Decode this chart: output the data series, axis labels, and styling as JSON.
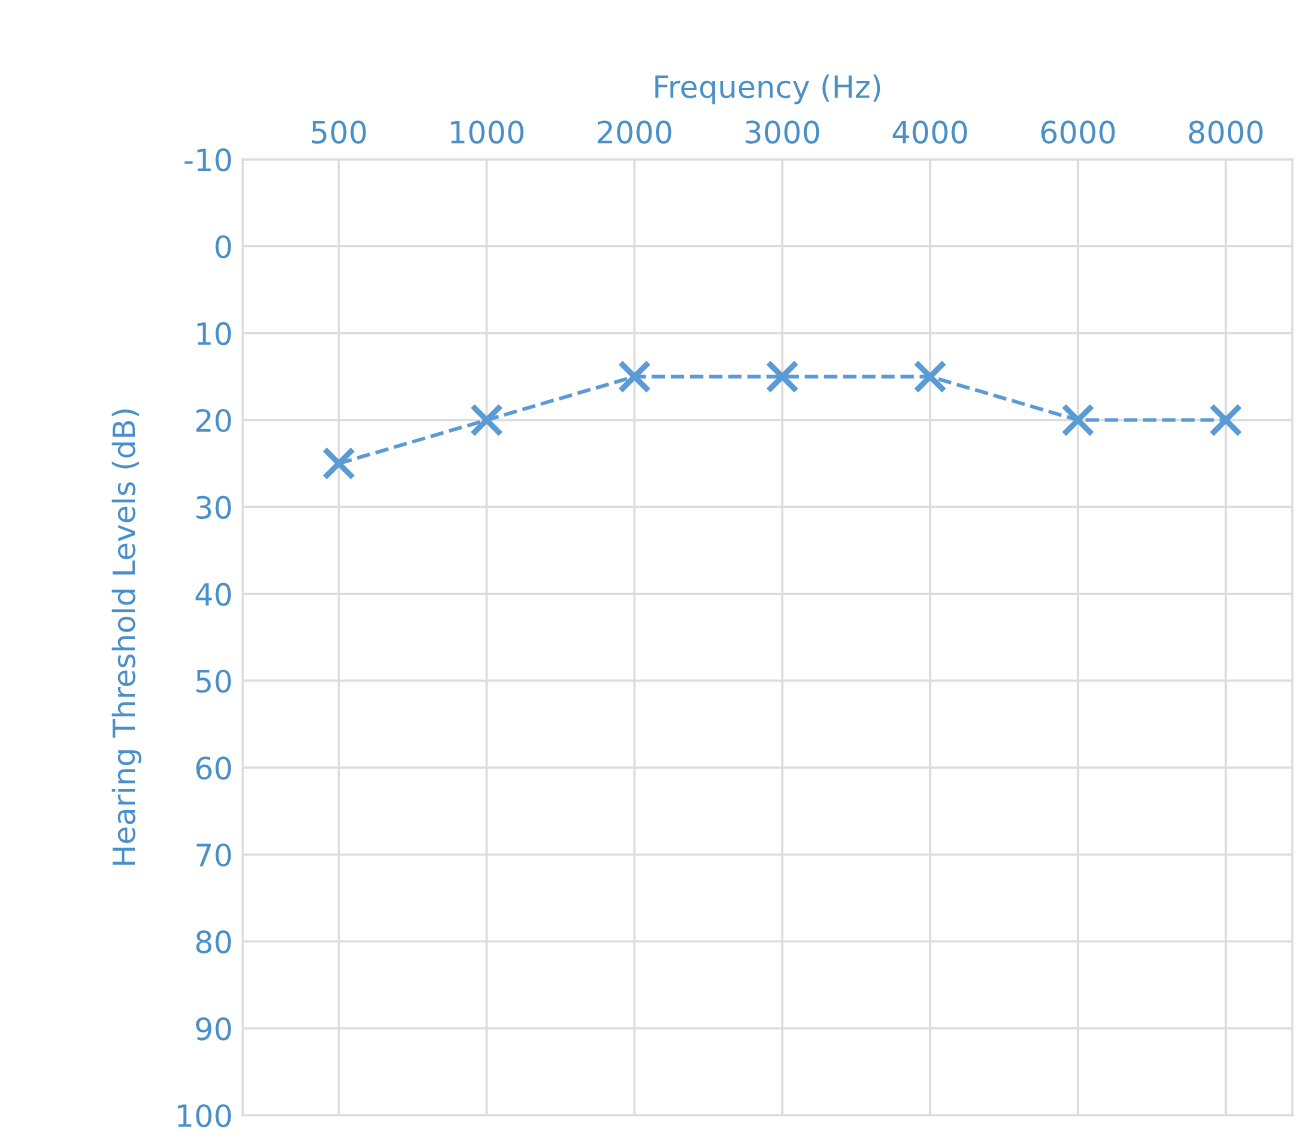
{
  "chart_data": {
    "type": "line",
    "xlabel": "Frequency (Hz)",
    "ylabel": "Hearing Threshold Levels (dB)",
    "categories": [
      "500",
      "1000",
      "2000",
      "3000",
      "4000",
      "6000",
      "8000"
    ],
    "series": [
      {
        "color": "#5b9bd5",
        "values": [
          25,
          20,
          15,
          15,
          15,
          20,
          20
        ]
      }
    ],
    "ylim": [
      100,
      -10
    ],
    "yticks": [
      -10,
      0,
      10,
      20,
      30,
      40,
      50,
      60,
      70,
      80,
      90,
      100
    ],
    "grid": true,
    "marker": "cross",
    "line_style": "dashed",
    "legend": false
  }
}
